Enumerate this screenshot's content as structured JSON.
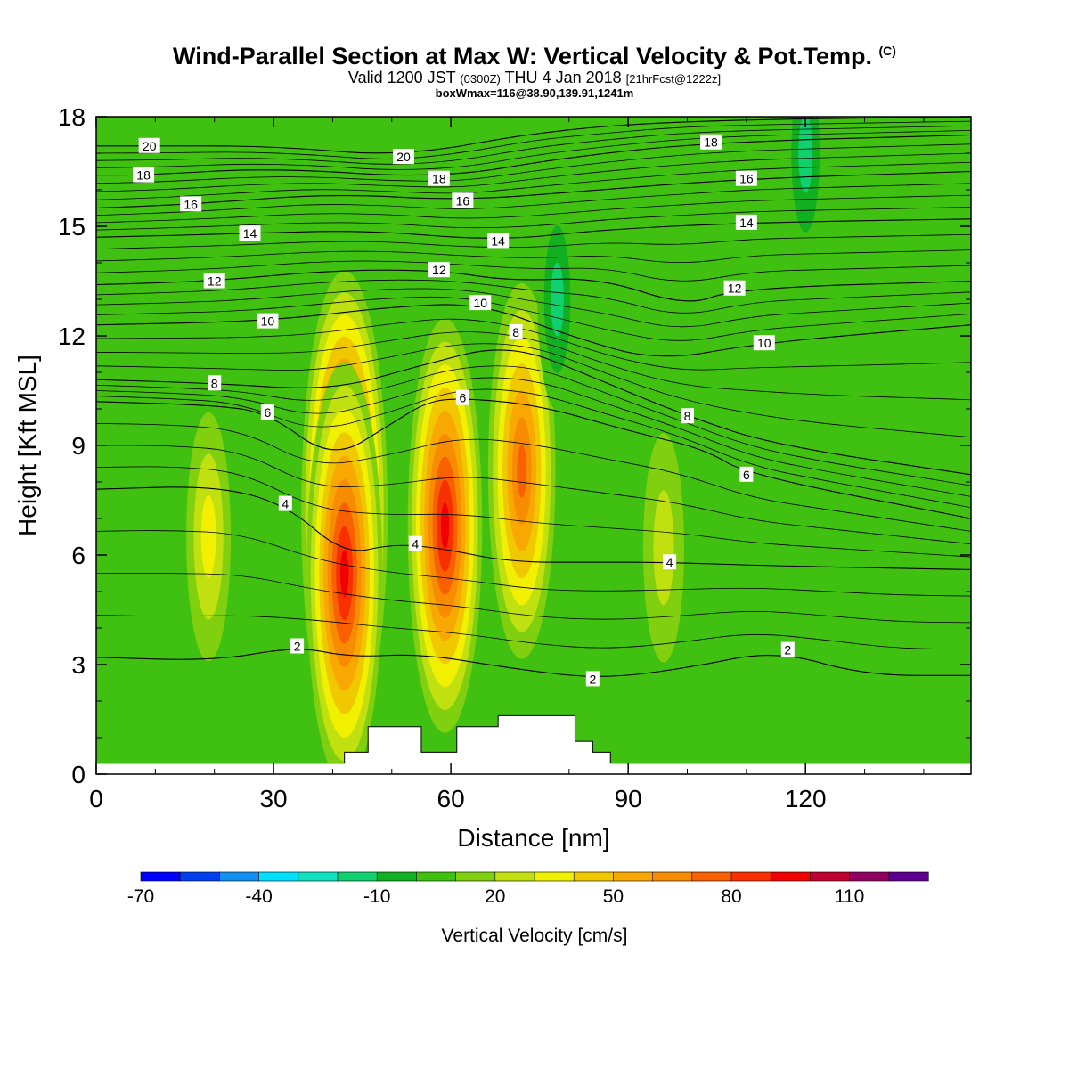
{
  "header": {
    "title": "Wind-Parallel Section at Max W: Vertical Velocity & Pot.Temp.",
    "copyright": "(C)",
    "valid_prefix": "Valid 1200 JST",
    "valid_utc": "(0300Z)",
    "valid_date": "THU 4 Jan 2018",
    "forecast": "[21hrFcst@1222z]",
    "box_info": "boxWmax=116@38.90,139.91,1241m"
  },
  "chart_data": {
    "type": "heatmap",
    "title": "Wind-Parallel Section at Max W: Vertical Velocity & Pot.Temp.",
    "xlabel": "Distance [nm]",
    "ylabel": "Height [Kft MSL]",
    "xlim": [
      0,
      148
    ],
    "ylim": [
      0,
      18
    ],
    "xticks": [
      0,
      30,
      60,
      90,
      120
    ],
    "yticks": [
      0,
      3,
      6,
      9,
      12,
      15,
      18
    ],
    "colorbar": {
      "title": "Vertical Velocity [cm/s]",
      "levels": [
        -70,
        -60,
        -50,
        -40,
        -30,
        -20,
        -10,
        0,
        10,
        20,
        30,
        40,
        50,
        60,
        70,
        80,
        90,
        100,
        110,
        120,
        130
      ],
      "labels": [
        "-70",
        "-40",
        "-10",
        "20",
        "50",
        "80",
        "110"
      ],
      "colors": [
        "#0000ff",
        "#0040f0",
        "#1090f0",
        "#00e0ff",
        "#10e0c0",
        "#10d070",
        "#10b020",
        "#40c010",
        "#80d010",
        "#c0e010",
        "#f0f000",
        "#f0c800",
        "#f8a800",
        "#f88c00",
        "#f86000",
        "#f83000",
        "#f00000",
        "#c00030",
        "#900060",
        "#600090"
      ]
    },
    "vertical_velocity_cells": [
      {
        "x": 42,
        "y": 7.2,
        "w": 116
      },
      {
        "x": 42,
        "y": 5.5,
        "w": 95
      },
      {
        "x": 59,
        "y": 6.8,
        "w": 92
      },
      {
        "x": 72,
        "y": 8.3,
        "w": 78
      },
      {
        "x": 19,
        "y": 6.5,
        "w": 32
      },
      {
        "x": 96,
        "y": 6.2,
        "w": 25
      },
      {
        "x": 120,
        "y": 17.0,
        "w": -28
      },
      {
        "x": 78,
        "y": 13.0,
        "w": -22
      }
    ],
    "theta_contours": [
      {
        "label": "2",
        "label_pos": [
          34,
          3.5
        ],
        "points": [
          [
            0,
            3.2
          ],
          [
            20,
            3.1
          ],
          [
            34,
            3.5
          ],
          [
            43,
            3.2
          ],
          [
            55,
            3.3
          ],
          [
            70,
            2.9
          ],
          [
            85,
            2.6
          ],
          [
            100,
            2.9
          ],
          [
            115,
            3.4
          ],
          [
            130,
            2.7
          ],
          [
            148,
            2.7
          ]
        ]
      },
      {
        "label": "2",
        "label_pos": [
          84,
          2.6
        ]
      },
      {
        "label": "2",
        "label_pos": [
          117,
          3.4
        ]
      },
      {
        "label": "4",
        "label_pos": [
          32,
          7.4
        ],
        "points": [
          [
            0,
            7.8
          ],
          [
            20,
            7.9
          ],
          [
            32,
            7.4
          ],
          [
            42,
            6.0
          ],
          [
            50,
            6.3
          ],
          [
            58,
            6.2
          ],
          [
            70,
            5.8
          ],
          [
            85,
            5.8
          ],
          [
            96,
            5.8
          ],
          [
            115,
            5.7
          ],
          [
            148,
            5.6
          ]
        ]
      },
      {
        "label": "4",
        "label_pos": [
          54,
          6.3
        ]
      },
      {
        "label": "4",
        "label_pos": [
          97,
          5.8
        ]
      },
      {
        "label": "6",
        "label_pos": [
          29,
          9.9
        ],
        "points": [
          [
            0,
            10.2
          ],
          [
            20,
            10.1
          ],
          [
            29,
            9.9
          ],
          [
            40,
            8.6
          ],
          [
            50,
            9.6
          ],
          [
            56,
            10.2
          ],
          [
            62,
            10.3
          ],
          [
            75,
            10.1
          ],
          [
            90,
            9.4
          ],
          [
            103,
            8.9
          ],
          [
            110,
            8.2
          ],
          [
            148,
            7.0
          ]
        ]
      },
      {
        "label": "6",
        "label_pos": [
          62,
          10.3
        ]
      },
      {
        "label": "6",
        "label_pos": [
          110,
          8.2
        ]
      },
      {
        "label": "8",
        "label_pos": [
          20,
          10.7
        ],
        "points": [
          [
            0,
            10.8
          ],
          [
            20,
            10.7
          ],
          [
            40,
            10.5
          ],
          [
            55,
            11.2
          ],
          [
            70,
            11.8
          ],
          [
            85,
            10.8
          ],
          [
            100,
            9.8
          ],
          [
            115,
            9.0
          ],
          [
            148,
            8.2
          ]
        ]
      },
      {
        "label": "8",
        "label_pos": [
          71,
          12.1
        ]
      },
      {
        "label": "8",
        "label_pos": [
          100,
          9.8
        ]
      },
      {
        "label": "10",
        "label_pos": [
          29,
          12.4
        ],
        "points": [
          [
            0,
            12.3
          ],
          [
            29,
            12.4
          ],
          [
            50,
            12.8
          ],
          [
            65,
            12.9
          ],
          [
            80,
            12.0
          ],
          [
            95,
            11.3
          ],
          [
            112,
            11.8
          ],
          [
            148,
            12.3
          ]
        ]
      },
      {
        "label": "10",
        "label_pos": [
          65,
          12.9
        ]
      },
      {
        "label": "10",
        "label_pos": [
          113,
          11.8
        ]
      },
      {
        "label": "12",
        "label_pos": [
          20,
          13.5
        ],
        "points": [
          [
            0,
            13.4
          ],
          [
            20,
            13.5
          ],
          [
            40,
            13.8
          ],
          [
            58,
            13.8
          ],
          [
            70,
            13.5
          ],
          [
            85,
            13.6
          ],
          [
            100,
            12.8
          ],
          [
            108,
            13.3
          ],
          [
            148,
            13.5
          ]
        ]
      },
      {
        "label": "12",
        "label_pos": [
          58,
          13.8
        ]
      },
      {
        "label": "12",
        "label_pos": [
          108,
          13.3
        ]
      },
      {
        "label": "14",
        "label_pos": [
          26,
          14.8
        ],
        "points": [
          [
            0,
            14.7
          ],
          [
            26,
            14.8
          ],
          [
            45,
            14.9
          ],
          [
            68,
            14.6
          ],
          [
            85,
            14.9
          ],
          [
            110,
            15.1
          ],
          [
            148,
            15.2
          ]
        ]
      },
      {
        "label": "14",
        "label_pos": [
          68,
          14.6
        ]
      },
      {
        "label": "14",
        "label_pos": [
          110,
          15.1
        ]
      },
      {
        "label": "16",
        "label_pos": [
          16,
          15.6
        ],
        "points": [
          [
            0,
            15.5
          ],
          [
            16,
            15.6
          ],
          [
            40,
            15.9
          ],
          [
            62,
            15.7
          ],
          [
            85,
            16.0
          ],
          [
            110,
            16.3
          ],
          [
            148,
            16.5
          ]
        ]
      },
      {
        "label": "16",
        "label_pos": [
          62,
          15.7
        ]
      },
      {
        "label": "16",
        "label_pos": [
          110,
          16.3
        ]
      },
      {
        "label": "18",
        "label_pos": [
          8,
          16.4
        ],
        "points": [
          [
            0,
            16.4
          ],
          [
            8,
            16.4
          ],
          [
            30,
            16.6
          ],
          [
            58,
            16.3
          ],
          [
            80,
            16.9
          ],
          [
            104,
            17.3
          ],
          [
            148,
            17.5
          ]
        ]
      },
      {
        "label": "18",
        "label_pos": [
          58,
          16.3
        ]
      },
      {
        "label": "18",
        "label_pos": [
          104,
          17.3
        ]
      },
      {
        "label": "20",
        "label_pos": [
          9,
          17.2
        ],
        "points": [
          [
            0,
            17.2
          ],
          [
            9,
            17.2
          ],
          [
            30,
            17.2
          ],
          [
            52,
            16.9
          ],
          [
            75,
            17.6
          ],
          [
            100,
            17.9
          ],
          [
            148,
            18.0
          ]
        ]
      },
      {
        "label": "20",
        "label_pos": [
          52,
          16.9
        ]
      }
    ],
    "terrain": [
      [
        0,
        0.3
      ],
      [
        42,
        0.3
      ],
      [
        42,
        0.6
      ],
      [
        46,
        0.6
      ],
      [
        46,
        1.3
      ],
      [
        55,
        1.3
      ],
      [
        55,
        0.6
      ],
      [
        61,
        0.6
      ],
      [
        61,
        1.3
      ],
      [
        68,
        1.3
      ],
      [
        68,
        1.6
      ],
      [
        81,
        1.6
      ],
      [
        81,
        0.9
      ],
      [
        84,
        0.9
      ],
      [
        84,
        0.6
      ],
      [
        87,
        0.6
      ],
      [
        87,
        0.3
      ],
      [
        148,
        0.3
      ]
    ]
  }
}
